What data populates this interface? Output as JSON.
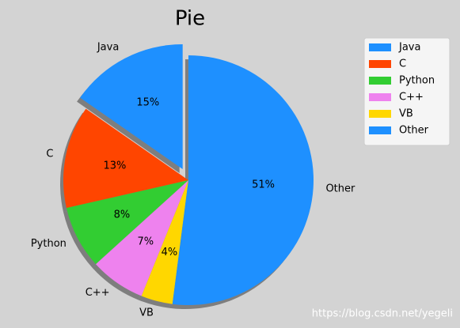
{
  "chart_data": {
    "type": "pie",
    "title": "Pie",
    "categories": [
      "Java",
      "C",
      "Python",
      "C++",
      "VB",
      "Other"
    ],
    "values": [
      15,
      13,
      8,
      7,
      4,
      51
    ],
    "value_labels": [
      "15%",
      "13%",
      "8%",
      "7%",
      "4%",
      "51%"
    ],
    "colors": [
      "#1e90ff",
      "#ff4500",
      "#32cd32",
      "#ee82ee",
      "#ffd700",
      "#1e90ff"
    ],
    "shadow": true,
    "legend": "upper right",
    "watermark": "https://blog.csdn.net/yegeli"
  }
}
